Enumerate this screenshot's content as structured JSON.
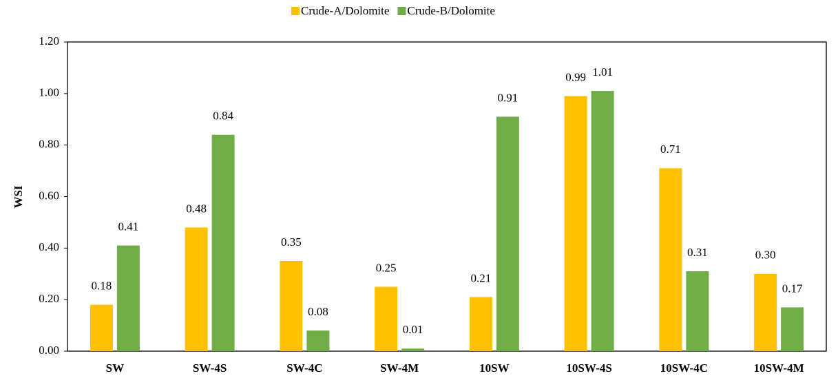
{
  "chart_data": {
    "type": "bar",
    "categories": [
      "SW",
      "SW-4S",
      "SW-4C",
      "SW-4M",
      "10SW",
      "10SW-4S",
      "10SW-4C",
      "10SW-4M"
    ],
    "series": [
      {
        "name": "Crude-A/Dolomite",
        "color": "#ffc000",
        "values": [
          0.18,
          0.48,
          0.35,
          0.25,
          0.21,
          0.99,
          0.71,
          0.3
        ],
        "value_labels": [
          "0.18",
          "0.48",
          "0.35",
          "0.25",
          "0.21",
          "0.99",
          "0.71",
          "0.30"
        ]
      },
      {
        "name": "Crude-B/Dolomite",
        "color": "#70ad47",
        "values": [
          0.41,
          0.84,
          0.08,
          0.01,
          0.91,
          1.01,
          0.31,
          0.17
        ],
        "value_labels": [
          "0.41",
          "0.84",
          "0.08",
          "0.01",
          "0.91",
          "1.01",
          "0.31",
          "0.17"
        ]
      }
    ],
    "y_label": "WSI",
    "ylim": [
      0,
      1.2
    ],
    "yticks": [
      {
        "value": 0,
        "label": "0.00"
      },
      {
        "value": 0.2,
        "label": "0.20"
      },
      {
        "value": 0.4,
        "label": "0.40"
      },
      {
        "value": 0.6,
        "label": "0.60"
      },
      {
        "value": 0.8,
        "label": "0.80"
      },
      {
        "value": 1.0,
        "label": "1.00"
      },
      {
        "value": 1.2,
        "label": "1.20"
      }
    ],
    "legend": "top"
  }
}
